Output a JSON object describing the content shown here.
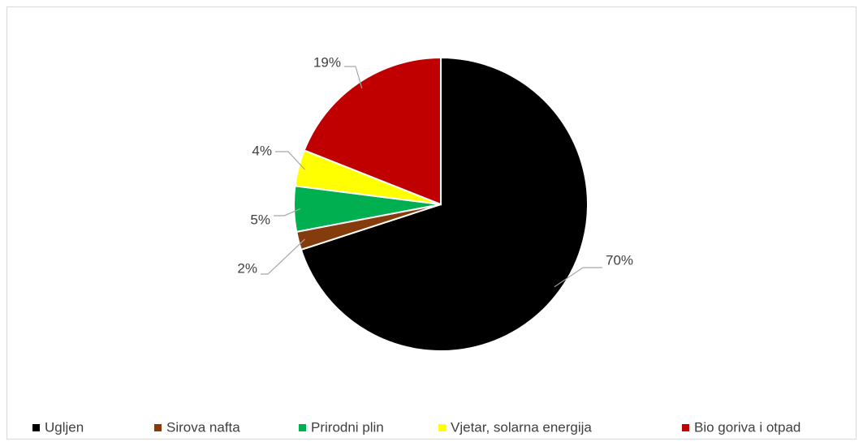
{
  "chart_data": {
    "type": "pie",
    "categories": [
      "Ugljen",
      "Sirova nafta",
      "Prirodni plin",
      "Vjetar, solarna energija",
      "Bio goriva i otpad"
    ],
    "values": [
      70,
      2,
      5,
      4,
      19
    ],
    "value_labels": [
      "70%",
      "2%",
      "5%",
      "4%",
      "19%"
    ],
    "colors": [
      "#000000",
      "#843c0c",
      "#00b050",
      "#ffff00",
      "#c00000"
    ],
    "legend": "bottom"
  }
}
